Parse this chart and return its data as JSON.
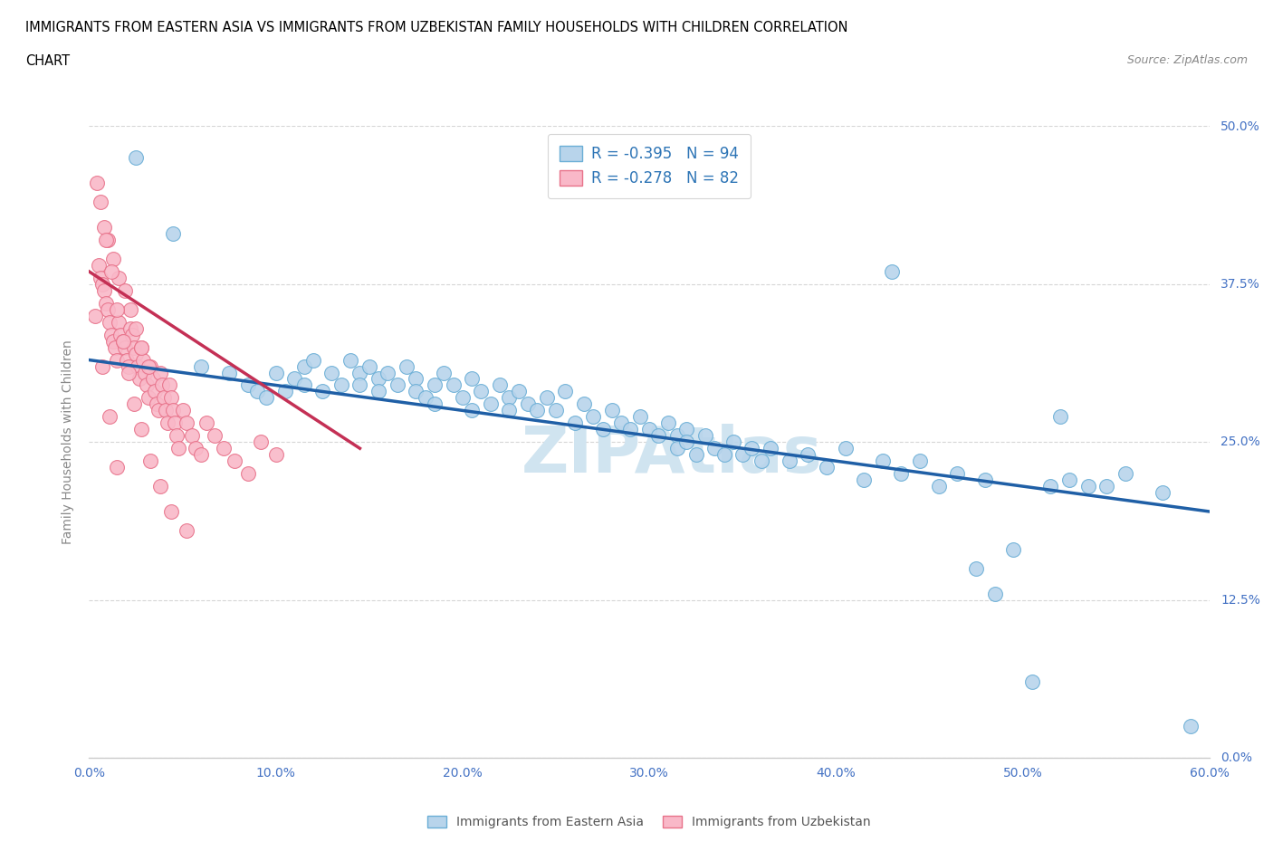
{
  "title_line1": "IMMIGRANTS FROM EASTERN ASIA VS IMMIGRANTS FROM UZBEKISTAN FAMILY HOUSEHOLDS WITH CHILDREN CORRELATION",
  "title_line2": "CHART",
  "source_text": "Source: ZipAtlas.com",
  "ylabel": "Family Households with Children",
  "xlim": [
    0.0,
    0.6
  ],
  "ylim": [
    0.0,
    0.5
  ],
  "yticks": [
    0.0,
    0.125,
    0.25,
    0.375,
    0.5
  ],
  "ytick_labels": [
    "0.0%",
    "12.5%",
    "25.0%",
    "37.5%",
    "50.0%"
  ],
  "xticks": [
    0.0,
    0.1,
    0.2,
    0.3,
    0.4,
    0.5,
    0.6
  ],
  "xtick_labels": [
    "0.0%",
    "10.0%",
    "20.0%",
    "30.0%",
    "40.0%",
    "50.0%",
    "60.0%"
  ],
  "series1_color": "#b8d4eb",
  "series1_edge_color": "#6aaed6",
  "series1_line_color": "#1f5fa6",
  "series1_label": "Immigrants from Eastern Asia",
  "series1_R": -0.395,
  "series1_N": 94,
  "series2_color": "#f9b8c8",
  "series2_edge_color": "#e8728a",
  "series2_line_color": "#c43055",
  "series2_label": "Immigrants from Uzbekistan",
  "series2_R": -0.278,
  "series2_N": 82,
  "legend_text_color": "#2e75b6",
  "watermark_color": "#d0e4f0",
  "grid_color": "#cccccc",
  "background_color": "#ffffff",
  "tick_color": "#4472c4",
  "scatter1_x": [
    0.025,
    0.045,
    0.06,
    0.075,
    0.085,
    0.09,
    0.095,
    0.1,
    0.105,
    0.11,
    0.115,
    0.115,
    0.12,
    0.125,
    0.13,
    0.135,
    0.14,
    0.145,
    0.145,
    0.15,
    0.155,
    0.155,
    0.16,
    0.165,
    0.17,
    0.175,
    0.175,
    0.18,
    0.185,
    0.185,
    0.19,
    0.195,
    0.2,
    0.205,
    0.205,
    0.21,
    0.215,
    0.22,
    0.225,
    0.225,
    0.23,
    0.235,
    0.24,
    0.245,
    0.25,
    0.255,
    0.26,
    0.265,
    0.27,
    0.275,
    0.28,
    0.285,
    0.29,
    0.295,
    0.3,
    0.305,
    0.31,
    0.315,
    0.315,
    0.32,
    0.32,
    0.325,
    0.33,
    0.335,
    0.34,
    0.345,
    0.35,
    0.355,
    0.36,
    0.365,
    0.375,
    0.385,
    0.395,
    0.405,
    0.415,
    0.425,
    0.435,
    0.445,
    0.455,
    0.465,
    0.475,
    0.485,
    0.495,
    0.505,
    0.515,
    0.525,
    0.535,
    0.545,
    0.555,
    0.575,
    0.43,
    0.48,
    0.52,
    0.59
  ],
  "scatter1_y": [
    0.475,
    0.415,
    0.31,
    0.305,
    0.295,
    0.29,
    0.285,
    0.305,
    0.29,
    0.3,
    0.31,
    0.295,
    0.315,
    0.29,
    0.305,
    0.295,
    0.315,
    0.305,
    0.295,
    0.31,
    0.3,
    0.29,
    0.305,
    0.295,
    0.31,
    0.3,
    0.29,
    0.285,
    0.295,
    0.28,
    0.305,
    0.295,
    0.285,
    0.3,
    0.275,
    0.29,
    0.28,
    0.295,
    0.285,
    0.275,
    0.29,
    0.28,
    0.275,
    0.285,
    0.275,
    0.29,
    0.265,
    0.28,
    0.27,
    0.26,
    0.275,
    0.265,
    0.26,
    0.27,
    0.26,
    0.255,
    0.265,
    0.255,
    0.245,
    0.26,
    0.25,
    0.24,
    0.255,
    0.245,
    0.24,
    0.25,
    0.24,
    0.245,
    0.235,
    0.245,
    0.235,
    0.24,
    0.23,
    0.245,
    0.22,
    0.235,
    0.225,
    0.235,
    0.215,
    0.225,
    0.15,
    0.13,
    0.165,
    0.06,
    0.215,
    0.22,
    0.215,
    0.215,
    0.225,
    0.21,
    0.385,
    0.22,
    0.27,
    0.025
  ],
  "scatter2_x": [
    0.005,
    0.006,
    0.007,
    0.008,
    0.009,
    0.01,
    0.011,
    0.012,
    0.013,
    0.014,
    0.015,
    0.016,
    0.017,
    0.018,
    0.019,
    0.02,
    0.021,
    0.022,
    0.023,
    0.024,
    0.025,
    0.026,
    0.027,
    0.028,
    0.029,
    0.03,
    0.031,
    0.032,
    0.033,
    0.034,
    0.035,
    0.036,
    0.037,
    0.038,
    0.039,
    0.04,
    0.041,
    0.042,
    0.043,
    0.044,
    0.045,
    0.046,
    0.047,
    0.048,
    0.05,
    0.052,
    0.055,
    0.057,
    0.06,
    0.063,
    0.067,
    0.072,
    0.078,
    0.085,
    0.092,
    0.1,
    0.008,
    0.01,
    0.013,
    0.016,
    0.019,
    0.022,
    0.025,
    0.028,
    0.032,
    0.004,
    0.006,
    0.009,
    0.012,
    0.015,
    0.018,
    0.021,
    0.024,
    0.028,
    0.033,
    0.038,
    0.044,
    0.052,
    0.003,
    0.007,
    0.011,
    0.015
  ],
  "scatter2_y": [
    0.39,
    0.38,
    0.375,
    0.37,
    0.36,
    0.355,
    0.345,
    0.335,
    0.33,
    0.325,
    0.315,
    0.345,
    0.335,
    0.33,
    0.325,
    0.315,
    0.31,
    0.34,
    0.335,
    0.325,
    0.32,
    0.31,
    0.3,
    0.325,
    0.315,
    0.305,
    0.295,
    0.285,
    0.31,
    0.3,
    0.29,
    0.28,
    0.275,
    0.305,
    0.295,
    0.285,
    0.275,
    0.265,
    0.295,
    0.285,
    0.275,
    0.265,
    0.255,
    0.245,
    0.275,
    0.265,
    0.255,
    0.245,
    0.24,
    0.265,
    0.255,
    0.245,
    0.235,
    0.225,
    0.25,
    0.24,
    0.42,
    0.41,
    0.395,
    0.38,
    0.37,
    0.355,
    0.34,
    0.325,
    0.31,
    0.455,
    0.44,
    0.41,
    0.385,
    0.355,
    0.33,
    0.305,
    0.28,
    0.26,
    0.235,
    0.215,
    0.195,
    0.18,
    0.35,
    0.31,
    0.27,
    0.23
  ],
  "trend1_x_start": 0.0,
  "trend1_x_end": 0.6,
  "trend1_y_start": 0.315,
  "trend1_y_end": 0.195,
  "trend2_x_start": 0.0,
  "trend2_x_end": 0.145,
  "trend2_y_start": 0.385,
  "trend2_y_end": 0.245
}
